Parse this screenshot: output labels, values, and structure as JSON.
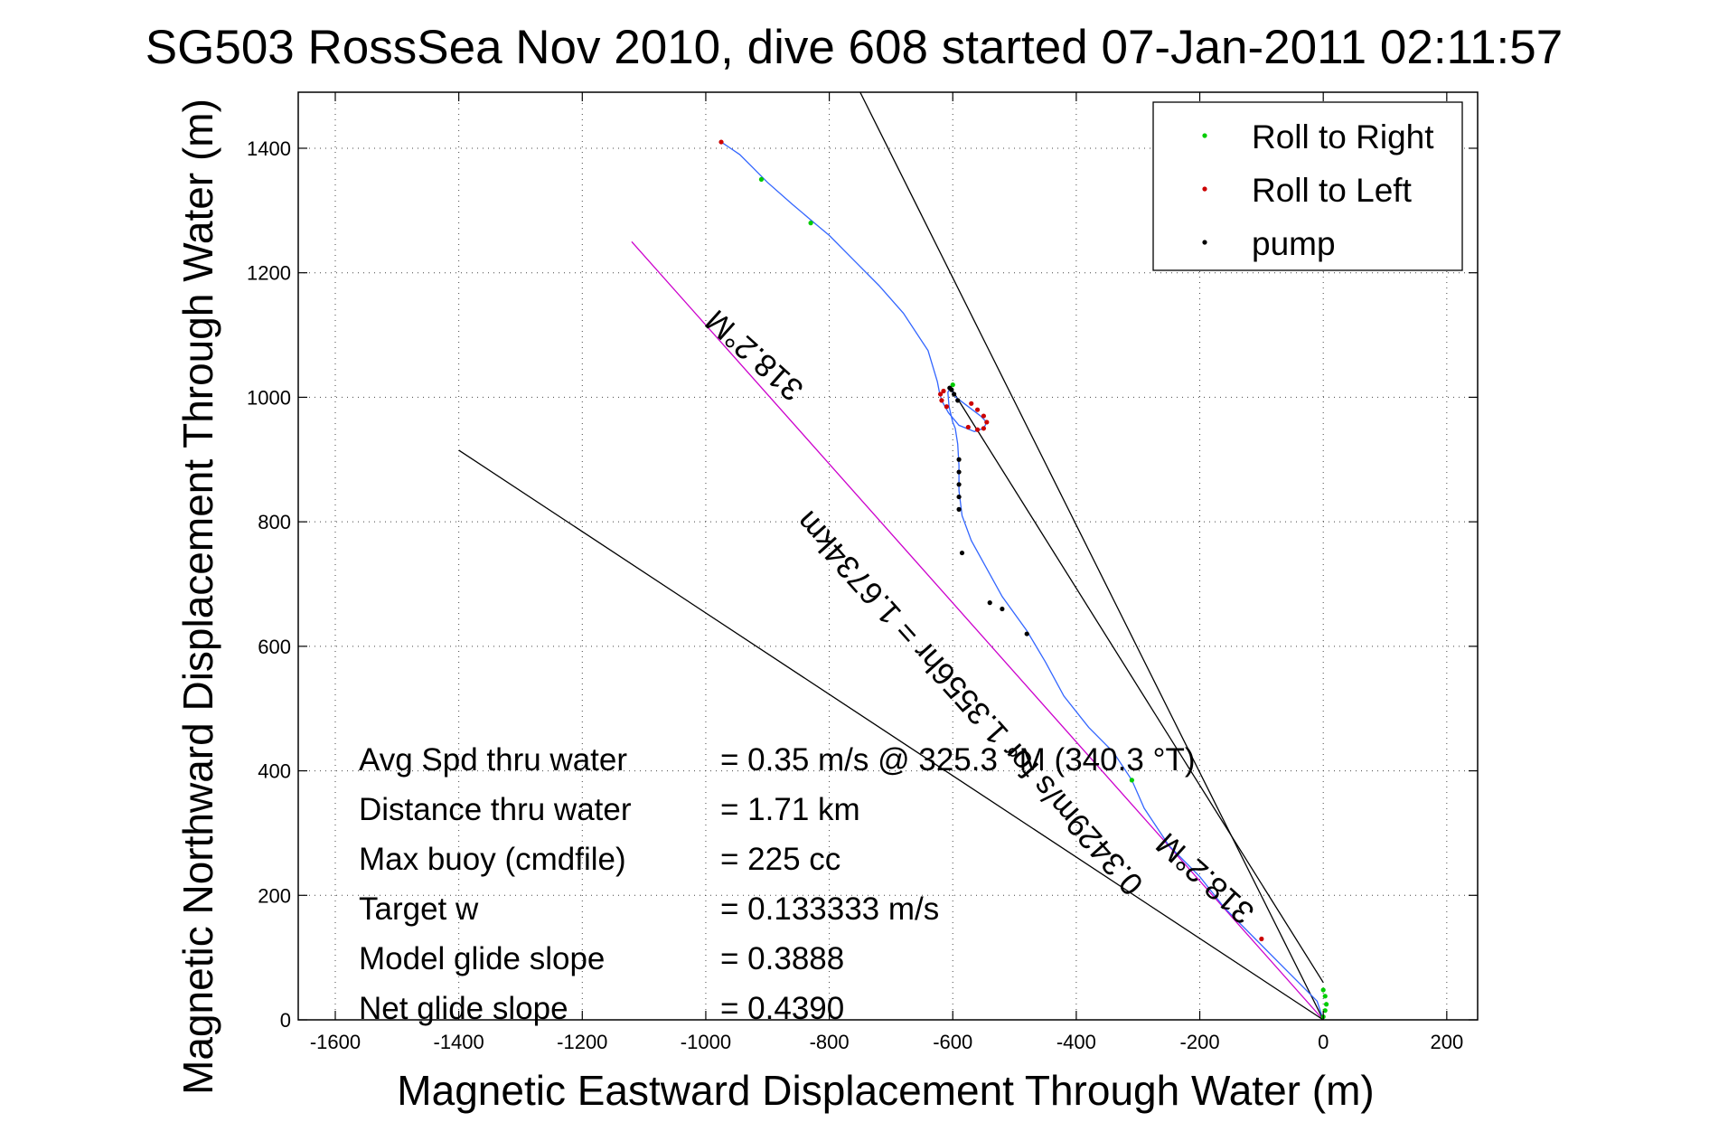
{
  "chart_data": {
    "type": "line",
    "title": "SG503 RossSea Nov 2010, dive 608 started 07-Jan-2011 02:11:57",
    "xlabel": "Magnetic Eastward Displacement Through Water (m)",
    "ylabel": "Magnetic Northward Displacement Through Water (m)",
    "xlim": [
      -1660,
      250
    ],
    "ylim": [
      0,
      1490
    ],
    "xticks": [
      -1600,
      -1400,
      -1200,
      -1000,
      -800,
      -600,
      -400,
      -200,
      0,
      200
    ],
    "yticks": [
      0,
      200,
      400,
      600,
      800,
      1000,
      1200,
      1400
    ],
    "grid": true,
    "legend_position": "top-right",
    "legend": [
      {
        "label": "Roll to Right",
        "color": "#00cc00"
      },
      {
        "label": "Roll to Left",
        "color": "#cc0000"
      },
      {
        "label": "pump",
        "color": "#000000"
      }
    ],
    "track": {
      "color": "#3366ff",
      "x": [
        0,
        -10,
        -60,
        -110,
        -160,
        -200,
        -250,
        -290,
        -310,
        -340,
        -380,
        -420,
        -450,
        -480,
        -520,
        -545,
        -570,
        -585,
        -590,
        -590,
        -592,
        -596,
        -600,
        -606,
        -608,
        -604,
        -595,
        -575,
        -555,
        -545,
        -550,
        -565,
        -590,
        -607,
        -618,
        -622,
        -625,
        -640,
        -680,
        -720,
        -760,
        -800,
        -830,
        -860,
        -900,
        -925,
        -945,
        -960,
        -975
      ],
      "y": [
        0,
        30,
        80,
        130,
        180,
        230,
        280,
        340,
        385,
        430,
        470,
        520,
        575,
        625,
        680,
        725,
        770,
        810,
        850,
        890,
        925,
        950,
        960,
        985,
        1008,
        1015,
        1000,
        985,
        970,
        960,
        950,
        945,
        955,
        975,
        995,
        1010,
        1025,
        1075,
        1135,
        1180,
        1220,
        1260,
        1285,
        1310,
        1345,
        1370,
        1390,
        1400,
        1410
      ]
    },
    "roll_right_points": {
      "x": [
        0,
        3,
        5,
        3,
        0,
        -310,
        -830,
        -910,
        -600
      ],
      "y": [
        5,
        15,
        25,
        38,
        48,
        385,
        1280,
        1350,
        1020
      ]
    },
    "roll_left_points": {
      "x": [
        -570,
        -560,
        -550,
        -545,
        -550,
        -560,
        -575,
        -610,
        -618,
        -620,
        -615,
        -975,
        -100
      ],
      "y": [
        990,
        980,
        970,
        960,
        950,
        948,
        952,
        985,
        995,
        1005,
        1010,
        1410,
        130
      ]
    },
    "pump_points": {
      "x": [
        -605,
        -602,
        -598,
        -592,
        -590,
        -590,
        -590,
        -590,
        -590,
        -585,
        -540,
        -520,
        -480
      ],
      "y": [
        1015,
        1012,
        1005,
        995,
        900,
        880,
        860,
        840,
        820,
        750,
        670,
        660,
        620
      ]
    },
    "reference_lines": [
      {
        "name": "318.2°M line",
        "color": "#cc00cc",
        "x": [
          0,
          -1120
        ],
        "y": [
          0,
          1250
        ]
      },
      {
        "name": "black line 1",
        "color": "#000000",
        "x": [
          0,
          -750
        ],
        "y": [
          0,
          1490
        ]
      },
      {
        "name": "black line 2",
        "color": "#000000",
        "x": [
          0,
          -1400
        ],
        "y": [
          0,
          915
        ]
      },
      {
        "name": "black line 3",
        "color": "#000000",
        "x": [
          0,
          -600
        ],
        "y": [
          60,
          1010
        ]
      }
    ],
    "line_annotations": [
      {
        "text": "318.2°M",
        "x": -910,
        "y": 1080,
        "rotate": 41.8
      },
      {
        "text": "0.3429m/s for 1.3556hr = 1.6734km",
        "x": -560,
        "y": 520,
        "rotate": 48.2
      },
      {
        "text": "318.2°M",
        "x": -180,
        "y": 240,
        "rotate": 41.8
      }
    ],
    "stats": [
      {
        "label": "Avg Spd thru water",
        "value": "=  0.35 m/s @ 325.3 °M (340.3 °T)"
      },
      {
        "label": "Distance thru water",
        "value": "=  1.71 km"
      },
      {
        "label": "Max buoy (cmdfile)",
        "value": "= 225 cc"
      },
      {
        "label": "Target w",
        "value": "= 0.133333 m/s"
      },
      {
        "label": "Model glide slope",
        "value": "= 0.3888"
      },
      {
        "label": "Net glide slope",
        "value": "= 0.4390"
      }
    ]
  }
}
